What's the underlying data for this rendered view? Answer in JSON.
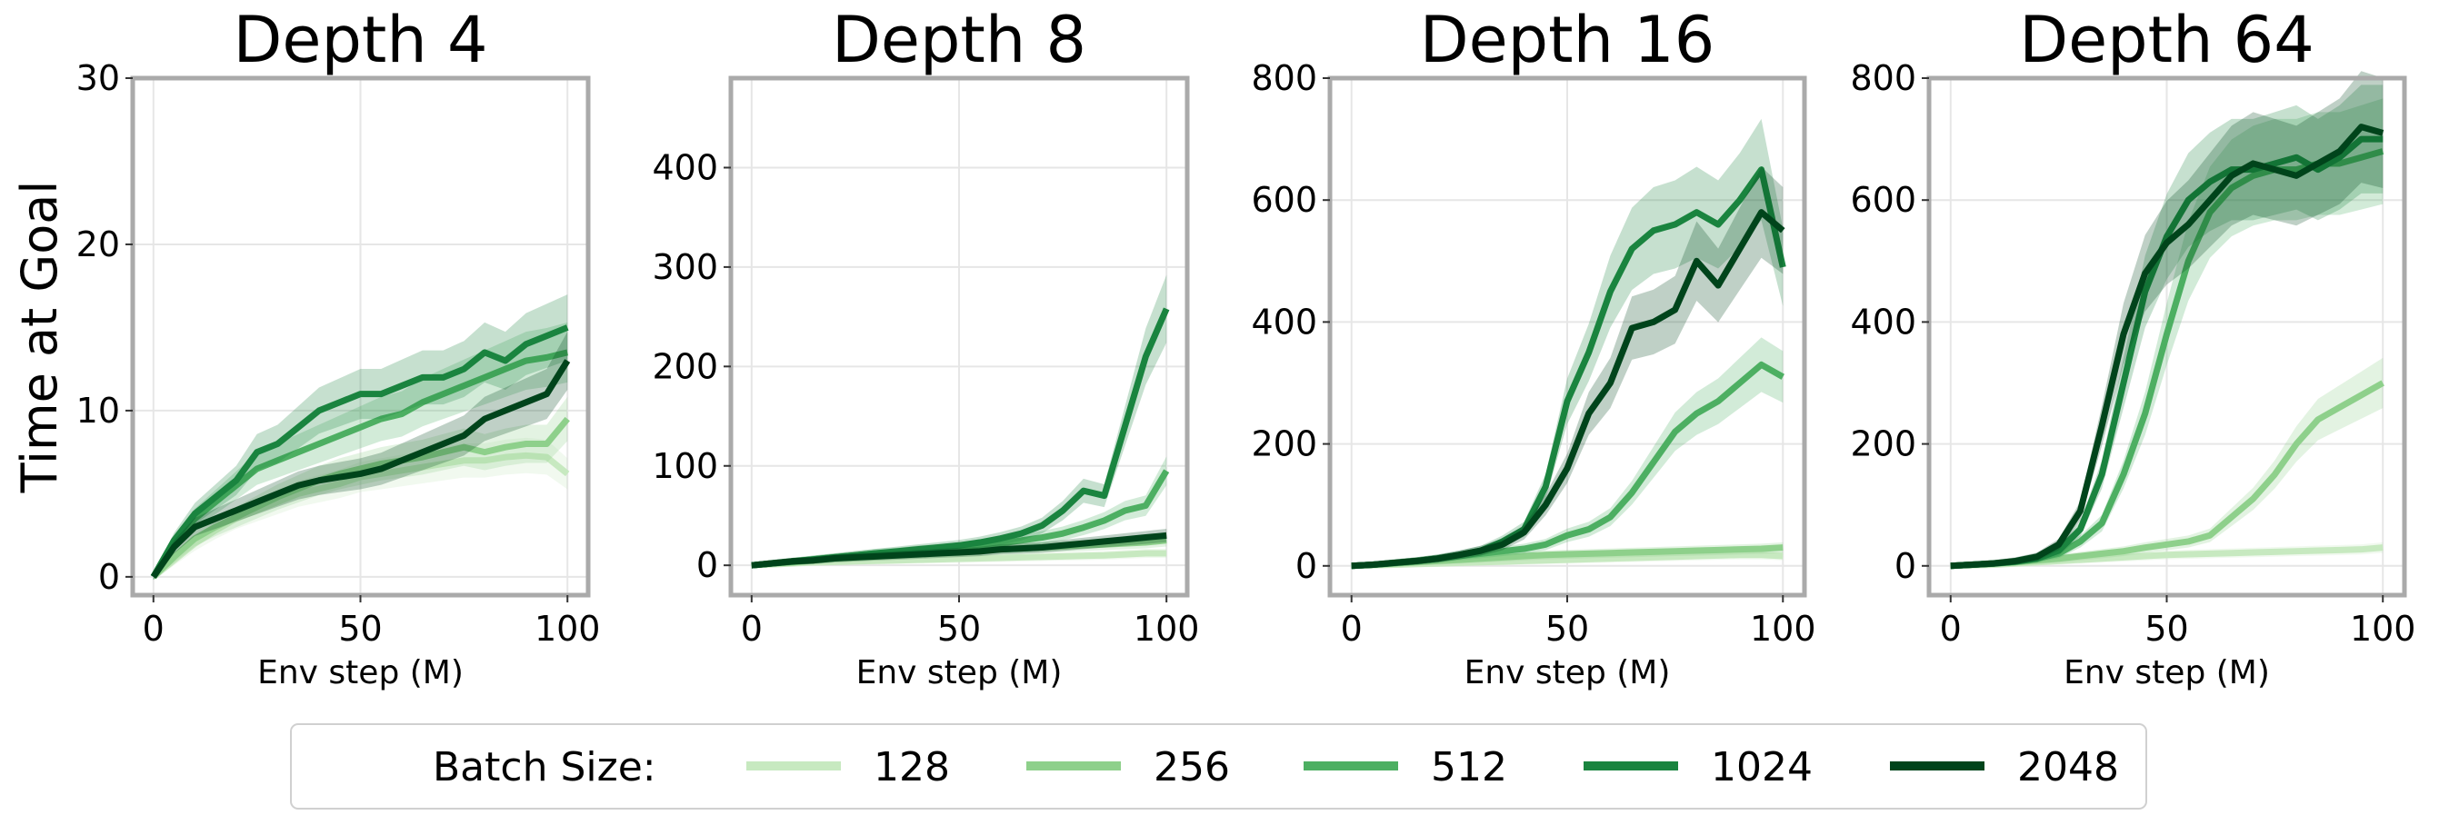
{
  "chart_data": [
    {
      "type": "line",
      "title": "Depth 4",
      "xlabel": "Env step (M)",
      "ylabel": "Time at Goal",
      "xlim": [
        -5,
        105
      ],
      "ylim": [
        -1.1,
        30
      ],
      "xticks": [
        0,
        50,
        100
      ],
      "yticks": [
        0,
        10,
        20,
        30
      ],
      "grid": true,
      "x": [
        0,
        5,
        10,
        15,
        20,
        25,
        30,
        35,
        40,
        45,
        50,
        55,
        60,
        65,
        70,
        75,
        80,
        85,
        90,
        95,
        100
      ],
      "series": [
        {
          "name": "128",
          "values": [
            0,
            1,
            2,
            2.8,
            3.5,
            4,
            4.5,
            5,
            5.3,
            5.6,
            6,
            6.2,
            6.4,
            6.6,
            6.8,
            7,
            7,
            7.2,
            7.3,
            7.2,
            6.2
          ]
        },
        {
          "name": "256",
          "values": [
            0,
            1.2,
            2.3,
            3,
            3.6,
            4.2,
            4.8,
            5.3,
            5.8,
            6.2,
            6.5,
            6.8,
            7,
            7.2,
            7.5,
            7.8,
            7.5,
            7.8,
            8,
            8,
            9.5
          ]
        },
        {
          "name": "512",
          "values": [
            0,
            2,
            3.5,
            4.5,
            5.5,
            6.5,
            7,
            7.5,
            8,
            8.5,
            9,
            9.5,
            9.8,
            10.5,
            11,
            11.5,
            12,
            12.5,
            13,
            13.2,
            13.5
          ]
        },
        {
          "name": "1024",
          "values": [
            0,
            2.2,
            3.8,
            4.8,
            5.8,
            7.5,
            8,
            9,
            10,
            10.5,
            11,
            11,
            11.5,
            12,
            12,
            12.5,
            13.5,
            13,
            14,
            14.5,
            15
          ]
        },
        {
          "name": "2048",
          "values": [
            0,
            1.8,
            3,
            3.5,
            4,
            4.5,
            5,
            5.5,
            5.8,
            6,
            6.2,
            6.5,
            7,
            7.5,
            8,
            8.5,
            9.5,
            10,
            10.5,
            11,
            13
          ]
        }
      ]
    },
    {
      "type": "line",
      "title": "Depth 8",
      "xlabel": "Env step (M)",
      "xlim": [
        -5,
        105
      ],
      "ylim": [
        -30,
        490
      ],
      "xticks": [
        0,
        50,
        100
      ],
      "yticks": [
        0,
        100,
        200,
        300,
        400
      ],
      "grid": true,
      "x": [
        0,
        5,
        10,
        15,
        20,
        25,
        30,
        35,
        40,
        45,
        50,
        55,
        60,
        65,
        70,
        75,
        80,
        85,
        90,
        95,
        100
      ],
      "series": [
        {
          "name": "128",
          "values": [
            0,
            1,
            2,
            3,
            3.5,
            4,
            4.5,
            5,
            5.5,
            6,
            6.5,
            7,
            7.5,
            8,
            8.5,
            9,
            9.5,
            10,
            11,
            12,
            12
          ]
        },
        {
          "name": "256",
          "values": [
            0,
            2,
            3,
            5,
            7,
            8,
            10,
            11,
            12,
            13,
            14,
            15,
            16,
            17,
            18,
            19,
            20,
            21,
            22,
            23,
            25
          ]
        },
        {
          "name": "512",
          "values": [
            0,
            2,
            4,
            6,
            8,
            10,
            12,
            13,
            15,
            16,
            18,
            20,
            22,
            25,
            28,
            32,
            38,
            45,
            55,
            60,
            95
          ]
        },
        {
          "name": "1024",
          "values": [
            0,
            2,
            4,
            6,
            8,
            10,
            12,
            14,
            16,
            18,
            20,
            23,
            27,
            32,
            40,
            55,
            75,
            70,
            140,
            210,
            258
          ]
        },
        {
          "name": "2048",
          "values": [
            0,
            2,
            4,
            5,
            7,
            8,
            9,
            10,
            11,
            12,
            13,
            14,
            16,
            17,
            18,
            20,
            22,
            24,
            26,
            28,
            30
          ]
        }
      ]
    },
    {
      "type": "line",
      "title": "Depth 16",
      "xlabel": "Env step (M)",
      "xlim": [
        -5,
        105
      ],
      "ylim": [
        -48,
        800
      ],
      "xticks": [
        0,
        50,
        100
      ],
      "yticks": [
        0,
        200,
        400,
        600,
        800
      ],
      "grid": true,
      "x": [
        0,
        5,
        10,
        15,
        20,
        25,
        30,
        35,
        40,
        45,
        50,
        55,
        60,
        65,
        70,
        75,
        80,
        85,
        90,
        95,
        100
      ],
      "series": [
        {
          "name": "128",
          "values": [
            0,
            1,
            2,
            3,
            4,
            5,
            6,
            7,
            8,
            9,
            10,
            11,
            12,
            13,
            14,
            15,
            16,
            17,
            18,
            18,
            16
          ]
        },
        {
          "name": "256",
          "values": [
            0,
            2,
            4,
            6,
            8,
            10,
            12,
            14,
            16,
            18,
            19,
            20,
            21,
            22,
            23,
            24,
            25,
            26,
            27,
            28,
            30
          ]
        },
        {
          "name": "512",
          "values": [
            0,
            2,
            5,
            8,
            12,
            16,
            20,
            24,
            28,
            35,
            50,
            60,
            80,
            120,
            170,
            220,
            250,
            270,
            300,
            330,
            310
          ]
        },
        {
          "name": "1024",
          "values": [
            0,
            2,
            5,
            8,
            12,
            18,
            25,
            40,
            60,
            130,
            270,
            350,
            450,
            520,
            550,
            560,
            580,
            560,
            600,
            650,
            490
          ]
        },
        {
          "name": "2048",
          "values": [
            0,
            2,
            5,
            8,
            12,
            18,
            25,
            35,
            55,
            100,
            160,
            250,
            300,
            390,
            400,
            420,
            500,
            460,
            520,
            580,
            550
          ]
        }
      ]
    },
    {
      "type": "line",
      "title": "Depth 64",
      "xlabel": "Env step (M)",
      "xlim": [
        -5,
        105
      ],
      "ylim": [
        -48,
        800
      ],
      "xticks": [
        0,
        50,
        100
      ],
      "yticks": [
        0,
        200,
        400,
        600,
        800
      ],
      "grid": true,
      "x": [
        0,
        5,
        10,
        15,
        20,
        25,
        30,
        35,
        40,
        45,
        50,
        55,
        60,
        65,
        70,
        75,
        80,
        85,
        90,
        95,
        100
      ],
      "series": [
        {
          "name": "128",
          "values": [
            0,
            1,
            2,
            4,
            6,
            8,
            10,
            12,
            14,
            16,
            18,
            19,
            20,
            21,
            22,
            23,
            24,
            25,
            26,
            27,
            30
          ]
        },
        {
          "name": "256",
          "values": [
            0,
            2,
            4,
            6,
            9,
            12,
            16,
            20,
            24,
            30,
            35,
            40,
            50,
            80,
            110,
            150,
            200,
            240,
            260,
            280,
            300
          ]
        },
        {
          "name": "512",
          "values": [
            0,
            2,
            4,
            7,
            12,
            20,
            40,
            70,
            150,
            250,
            380,
            500,
            580,
            620,
            640,
            650,
            650,
            660,
            660,
            670,
            680
          ]
        },
        {
          "name": "1024",
          "values": [
            0,
            2,
            4,
            7,
            12,
            25,
            60,
            150,
            300,
            450,
            540,
            600,
            630,
            650,
            650,
            660,
            670,
            650,
            670,
            700,
            700
          ]
        },
        {
          "name": "2048",
          "values": [
            0,
            2,
            4,
            8,
            15,
            35,
            90,
            230,
            380,
            480,
            530,
            560,
            600,
            640,
            660,
            650,
            640,
            660,
            680,
            720,
            710
          ]
        }
      ]
    }
  ],
  "legend": {
    "title": "Batch Size:",
    "placement": "bottom",
    "entries": [
      "128",
      "256",
      "512",
      "1024",
      "2048"
    ]
  },
  "colors": {
    "128": "#c7e9c0",
    "256": "#8ed08b",
    "512": "#4daf62",
    "1024": "#1a843f",
    "2048": "#00441b",
    "frame": "#aaaaaa",
    "grid": "#e6e6e6"
  }
}
